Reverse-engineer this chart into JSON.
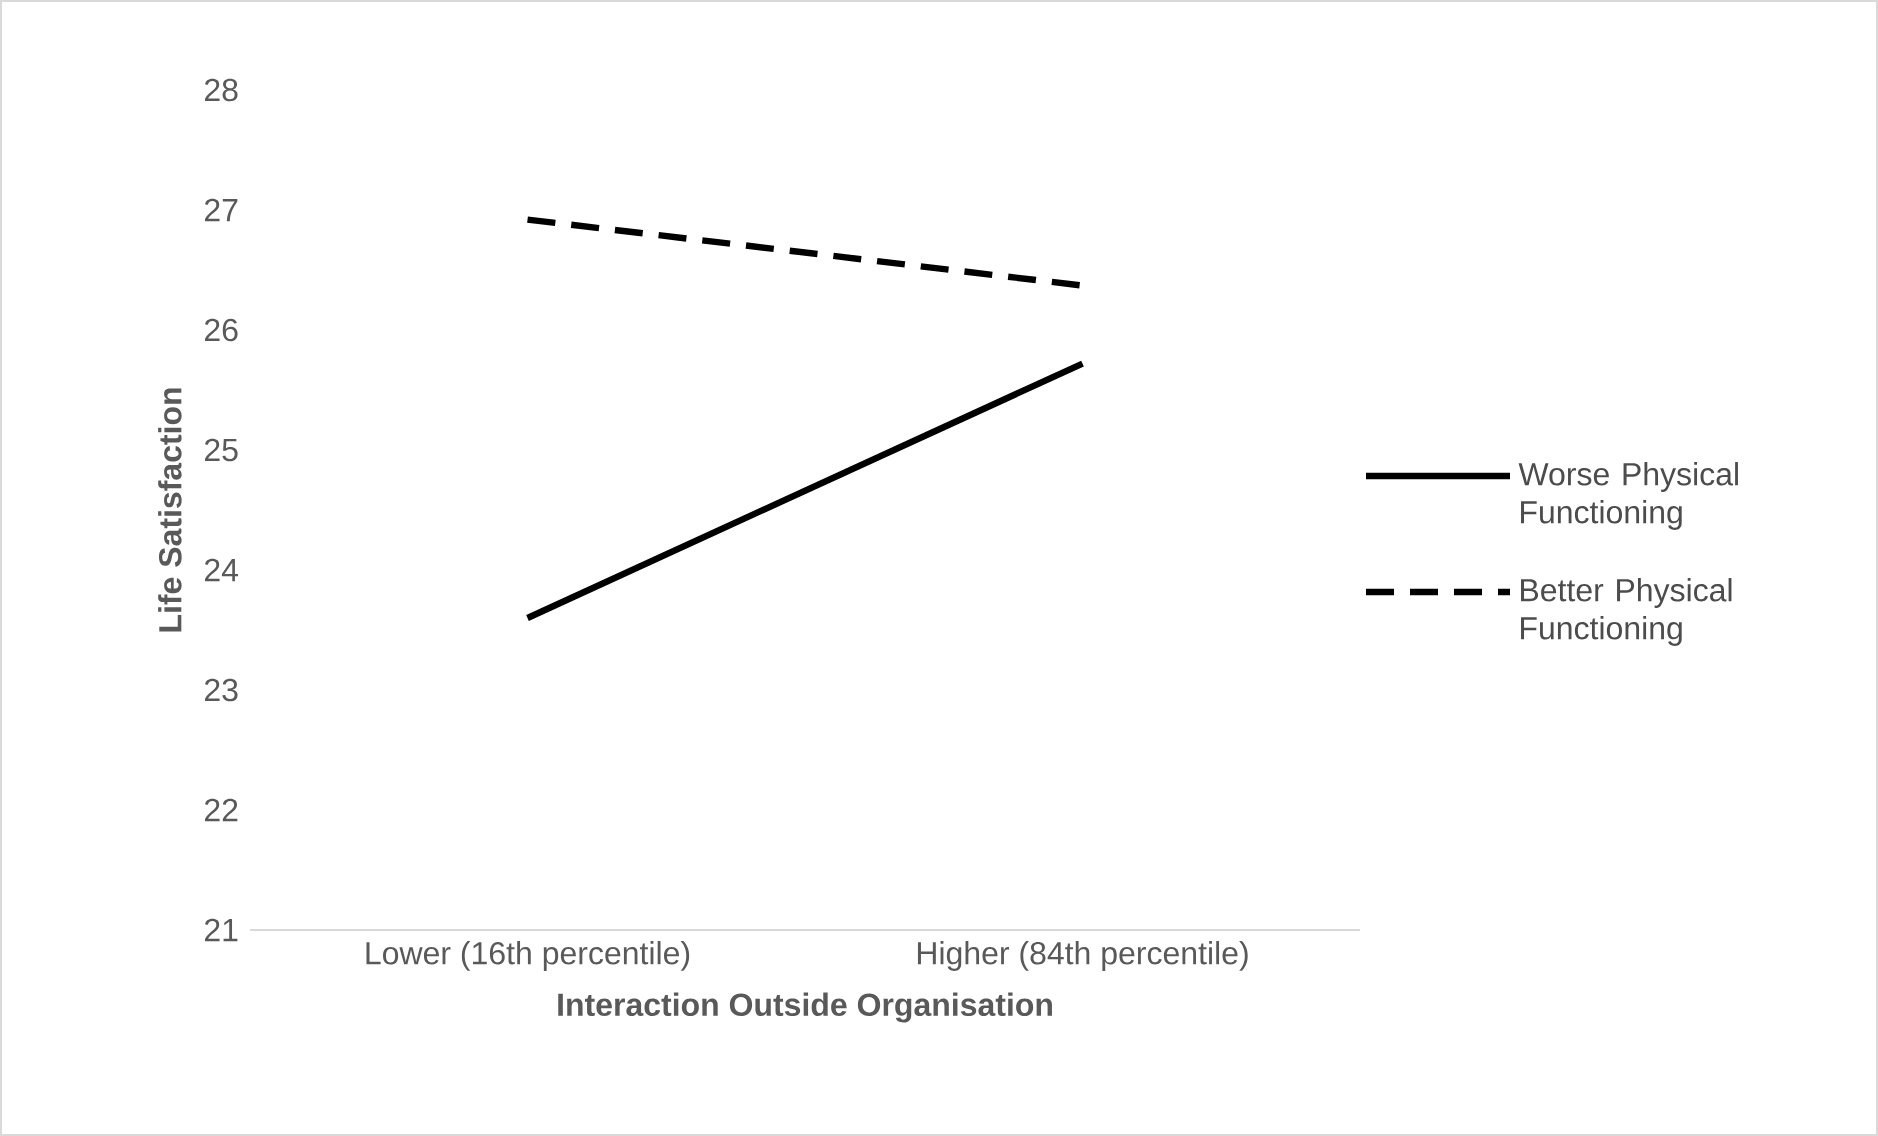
{
  "chart_data": {
    "type": "line",
    "xlabel": "Interaction Outside Organisation",
    "ylabel": "Life Satisfaction",
    "categories": [
      "Lower (16th percentile)",
      "Higher (84th percentile)"
    ],
    "series": [
      {
        "name": "Worse Physical Functioning",
        "color": "#000000",
        "line_style": "solid",
        "values": [
          23.6,
          25.72
        ]
      },
      {
        "name": "Better Physical Functioning",
        "color": "#000000",
        "line_style": "dashed",
        "values": [
          26.92,
          26.37
        ]
      }
    ],
    "ylim": [
      21,
      28
    ],
    "yticks": [
      21,
      22,
      23,
      24,
      25,
      26,
      27,
      28
    ],
    "grid": false,
    "legend": "right",
    "marker": "none"
  }
}
